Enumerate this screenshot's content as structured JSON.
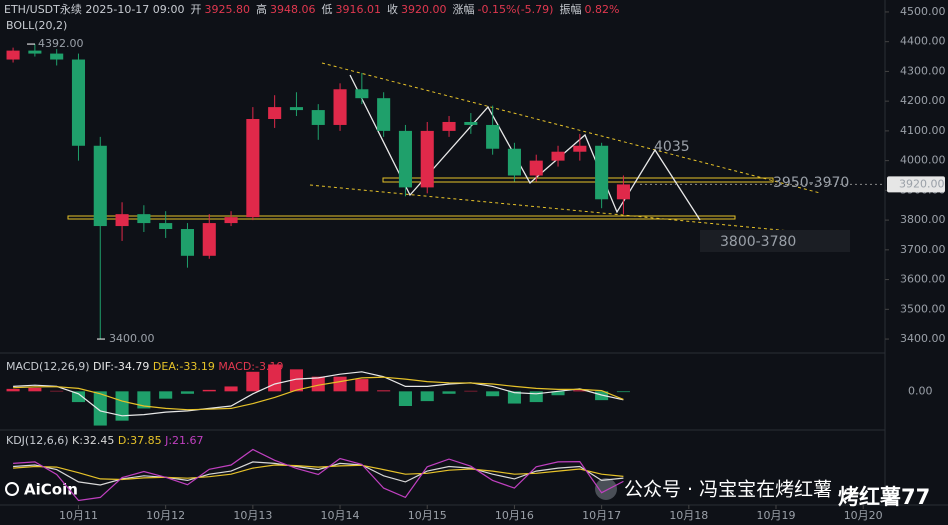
{
  "header": {
    "symbol": "ETH/USDT永续",
    "time": "2025-10-17 09:00",
    "fields": [
      [
        "开",
        "3925.80"
      ],
      [
        "高",
        "3948.06"
      ],
      [
        "低",
        "3916.01"
      ],
      [
        "收",
        "3920.00"
      ],
      [
        "涨幅",
        "-0.15%(-5.79)"
      ],
      [
        "振幅",
        "0.82%"
      ]
    ]
  },
  "watermark": {
    "logo": "AiCoin",
    "account": "公众号 · 冯宝宝在烤红薯",
    "tag": "烤红薯77"
  },
  "chart_data": [
    {
      "type": "candlestick",
      "indicator": "BOLL(20,2)",
      "up_color": "#e0294a",
      "down_color": "#1fa06b",
      "x": [
        10.25,
        10.5,
        10.75,
        11,
        11.25,
        11.5,
        11.75,
        12,
        12.25,
        12.5,
        12.75,
        13,
        13.25,
        13.5,
        13.75,
        14,
        14.25,
        14.5,
        14.75,
        15,
        15.25,
        15.5,
        15.75,
        16,
        16.25,
        16.5,
        16.75,
        17,
        17.25
      ],
      "open": [
        4340,
        4370,
        4360,
        4340,
        4050,
        3780,
        3820,
        3790,
        3770,
        3680,
        3790,
        3810,
        4140,
        4180,
        4170,
        4120,
        4240,
        4210,
        4100,
        3910,
        4100,
        4130,
        4120,
        4040,
        3950,
        4000,
        4030,
        4050,
        3870
      ],
      "high": [
        4380,
        4392,
        4375,
        4360,
        4080,
        3860,
        3850,
        3830,
        3790,
        3820,
        3830,
        4180,
        4220,
        4230,
        4190,
        4260,
        4295,
        4230,
        4120,
        4130,
        4150,
        4160,
        4185,
        4060,
        4020,
        4050,
        4090,
        4060,
        3950
      ],
      "low": [
        4330,
        4350,
        4320,
        4000,
        3400,
        3730,
        3760,
        3740,
        3640,
        3670,
        3780,
        3800,
        4110,
        4150,
        4070,
        4100,
        4190,
        4080,
        3880,
        3890,
        4080,
        4090,
        4020,
        3930,
        3930,
        3980,
        4000,
        3840,
        3820
      ],
      "close": [
        4370,
        4360,
        4340,
        4050,
        3780,
        3820,
        3790,
        3770,
        3680,
        3790,
        3810,
        4140,
        4180,
        4170,
        4120,
        4240,
        4210,
        4100,
        3910,
        4100,
        4130,
        4120,
        4040,
        3950,
        4000,
        4030,
        4050,
        3870,
        3920
      ],
      "xlim": [
        10.1,
        20.25
      ],
      "xticks": [
        {
          "value": 11,
          "label": "10月11"
        },
        {
          "value": 12,
          "label": "10月12"
        },
        {
          "value": 13,
          "label": "10月13"
        },
        {
          "value": 14,
          "label": "10月14"
        },
        {
          "value": 15,
          "label": "10月15"
        },
        {
          "value": 16,
          "label": "10月16"
        },
        {
          "value": 17,
          "label": "10月17"
        },
        {
          "value": 18,
          "label": "10月18"
        },
        {
          "value": 19,
          "label": "10月19"
        },
        {
          "value": 20,
          "label": "10月20"
        }
      ],
      "ylim": [
        3380,
        4520
      ],
      "yticks": [
        {
          "value": 3400,
          "label": "3400.00"
        },
        {
          "value": 3500,
          "label": "3500.00"
        },
        {
          "value": 3600,
          "label": "3600.00"
        },
        {
          "value": 3700,
          "label": "3700.00"
        },
        {
          "value": 3800,
          "label": "3800.00"
        },
        {
          "value": 3900,
          "label": "3900.00"
        },
        {
          "value": 4000,
          "label": "4000.00"
        },
        {
          "value": 4100,
          "label": "4100.00"
        },
        {
          "value": 4200,
          "label": "4200.00"
        },
        {
          "value": 4300,
          "label": "4300.00"
        },
        {
          "value": 4400,
          "label": "4400.00"
        },
        {
          "value": 4500,
          "label": "4500.00"
        }
      ],
      "high_label": {
        "value": 4392,
        "label": "4392.00"
      },
      "low_label": {
        "value": 3400,
        "label": "3400.00"
      },
      "last_price": {
        "value": 3920,
        "label": "3920.00"
      },
      "annotations": [
        "4035",
        "3950-3970",
        "3800-3780"
      ]
    },
    {
      "type": "macd",
      "title": "MACD(12,26,9)",
      "legend": [
        "DIF:-34.79",
        "DEA:-33.19",
        "MACD:-3.19"
      ],
      "series": [
        {
          "name": "DIF",
          "color": "#e8e8e8",
          "values": [
            20,
            25,
            20,
            -10,
            -80,
            -100,
            -95,
            -85,
            -80,
            -70,
            -60,
            -10,
            30,
            50,
            55,
            70,
            80,
            60,
            20,
            20,
            30,
            35,
            20,
            -5,
            -10,
            0,
            10,
            -15,
            -34.79
          ]
        },
        {
          "name": "DEA",
          "color": "#e6c229",
          "values": [
            15,
            18,
            19,
            12,
            -10,
            -40,
            -60,
            -70,
            -75,
            -73,
            -70,
            -50,
            -25,
            5,
            25,
            40,
            55,
            58,
            50,
            40,
            35,
            34,
            30,
            20,
            12,
            8,
            8,
            3,
            -33.19
          ]
        },
        {
          "name": "MACD",
          "values": [
            10,
            14,
            2,
            -44,
            -140,
            -120,
            -70,
            -30,
            -10,
            6,
            20,
            80,
            110,
            90,
            60,
            60,
            50,
            4,
            -60,
            -40,
            -10,
            2,
            -20,
            -50,
            -44,
            -16,
            4,
            -36,
            -3.19
          ]
        }
      ],
      "ylim": [
        -150,
        120
      ],
      "yticks": [
        {
          "value": 0,
          "label": "0.00"
        }
      ]
    },
    {
      "type": "kdj",
      "title": "KDJ(12,6,6)",
      "legend": [
        "K:32.45",
        "D:37.85",
        "J:21.67"
      ],
      "series": [
        {
          "name": "K",
          "color": "#d8d8d8",
          "values": [
            70,
            75,
            60,
            20,
            10,
            30,
            40,
            35,
            25,
            45,
            55,
            85,
            80,
            70,
            60,
            80,
            75,
            40,
            20,
            55,
            70,
            65,
            45,
            30,
            55,
            65,
            70,
            25,
            32.45
          ]
        },
        {
          "name": "D",
          "color": "#e6c229",
          "values": [
            65,
            70,
            68,
            50,
            30,
            28,
            33,
            35,
            32,
            37,
            45,
            65,
            75,
            73,
            68,
            72,
            74,
            60,
            45,
            48,
            58,
            62,
            55,
            45,
            48,
            55,
            62,
            45,
            37.85
          ]
        },
        {
          "name": "J",
          "color": "#c040c0",
          "values": [
            80,
            85,
            44,
            -40,
            -30,
            34,
            54,
            35,
            11,
            61,
            75,
            125,
            90,
            64,
            44,
            96,
            77,
            0,
            -30,
            69,
            94,
            71,
            25,
            0,
            69,
            85,
            86,
            -15,
            21.67
          ]
        }
      ],
      "ylim": [
        -45,
        130
      ]
    }
  ]
}
